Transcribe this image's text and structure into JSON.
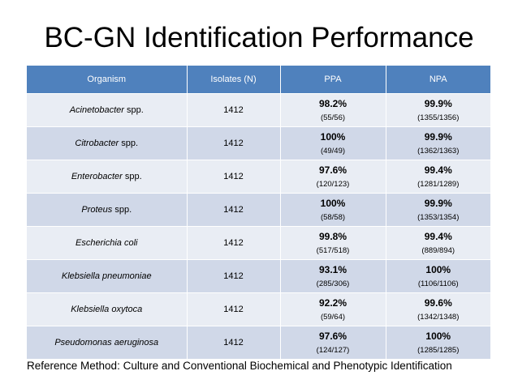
{
  "title": "BC-GN Identification Performance",
  "table": {
    "headers": [
      "Organism",
      "Isolates (N)",
      "PPA",
      "NPA"
    ],
    "rows": [
      {
        "genus": "Acinetobacter",
        "suffix": " spp.",
        "n": "1412",
        "ppa": "98.2%",
        "ppa_count": "(55/56)",
        "npa": "99.9%",
        "npa_count": "(1355/1356)"
      },
      {
        "genus": "Citrobacter",
        "suffix": " spp.",
        "n": "1412",
        "ppa": "100%",
        "ppa_count": "(49/49)",
        "npa": "99.9%",
        "npa_count": "(1362/1363)"
      },
      {
        "genus": "Enterobacter",
        "suffix": " spp.",
        "n": "1412",
        "ppa": "97.6%",
        "ppa_count": "(120/123)",
        "npa": "99.4%",
        "npa_count": "(1281/1289)"
      },
      {
        "genus": "Proteus",
        "suffix": " spp.",
        "n": "1412",
        "ppa": "100%",
        "ppa_count": "(58/58)",
        "npa": "99.9%",
        "npa_count": "(1353/1354)"
      },
      {
        "genus": "Escherichia coli",
        "suffix": "",
        "n": "1412",
        "ppa": "99.8%",
        "ppa_count": "(517/518)",
        "npa": "99.4%",
        "npa_count": "(889/894)"
      },
      {
        "genus": "Klebsiella pneumoniae",
        "suffix": "",
        "n": "1412",
        "ppa": "93.1%",
        "ppa_count": "(285/306)",
        "npa": "100%",
        "npa_count": "(1106/1106)"
      },
      {
        "genus": "Klebsiella oxytoca",
        "suffix": "",
        "n": "1412",
        "ppa": "92.2%",
        "ppa_count": "(59/64)",
        "npa": "99.6%",
        "npa_count": "(1342/1348)"
      },
      {
        "genus": "Pseudomonas aeruginosa",
        "suffix": "",
        "n": "1412",
        "ppa": "97.6%",
        "ppa_count": "(124/127)",
        "npa": "100%",
        "npa_count": "(1285/1285)"
      }
    ]
  },
  "footer": "Reference Method: Culture and Conventional Biochemical and Phenotypic Identification",
  "colors": {
    "header_bg": "#4f81bd",
    "row_light": "#e9edf4",
    "row_dark": "#d0d8e8"
  }
}
